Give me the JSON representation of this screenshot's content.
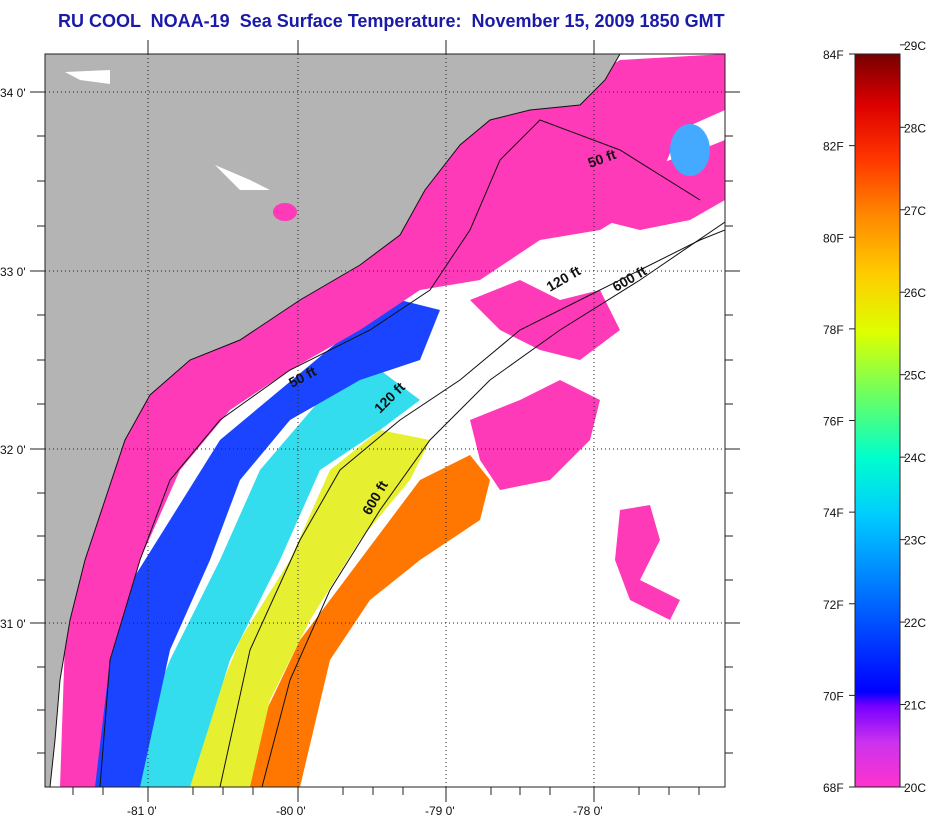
{
  "title": "RU COOL  NOAA-19  Sea Surface Temperature:  November 15, 2009 1850 GMT",
  "map": {
    "lat_labels": [
      "34 0'",
      "33 0'",
      "32 0'",
      "31 0'"
    ],
    "lon_labels": [
      "-81 0'",
      "-80 0'",
      "-79 0'",
      "-78 0'"
    ],
    "contours": [
      {
        "label": "50 ft"
      },
      {
        "label": "120 ft"
      },
      {
        "label": "600 ft"
      },
      {
        "label": "50 ft"
      },
      {
        "label": "120 ft"
      },
      {
        "label": "600 ft"
      }
    ],
    "land_color": "#b4b4b4",
    "cloud_color": "#ffffff"
  },
  "colorbar": {
    "fahrenheit_labels": [
      "84F",
      "82F",
      "80F",
      "78F",
      "76F",
      "74F",
      "72F",
      "70F",
      "68F"
    ],
    "celsius_labels": [
      "29C",
      "28C",
      "27C",
      "26C",
      "25C",
      "24C",
      "23C",
      "22C",
      "21C",
      "20C"
    ],
    "colors": [
      "#ff33cc",
      "#9933ff",
      "#0000ff",
      "#0099ff",
      "#00ffff",
      "#33ff99",
      "#ccff00",
      "#ffff00",
      "#ffaa00",
      "#ff6600",
      "#ff0000",
      "#880000"
    ]
  }
}
